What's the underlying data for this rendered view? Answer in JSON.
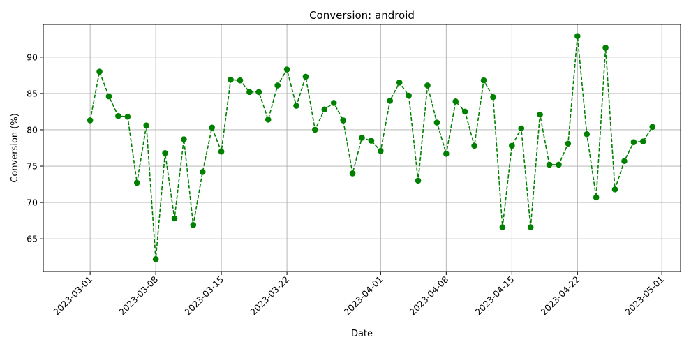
{
  "chart_data": {
    "type": "line",
    "title": "Conversion: android",
    "xlabel": "Date",
    "ylabel": "Conversion (%)",
    "grid": true,
    "line_style": "dashed",
    "marker": "circle",
    "color": "#008000",
    "xlim": [
      "2023-02-24",
      "2023-05-03"
    ],
    "ylim": [
      60.5,
      94.5
    ],
    "x_ticks": [
      "2023-03-01",
      "2023-03-08",
      "2023-03-15",
      "2023-03-22",
      "2023-04-01",
      "2023-04-08",
      "2023-04-15",
      "2023-04-22",
      "2023-05-01"
    ],
    "y_ticks": [
      65,
      70,
      75,
      80,
      85,
      90
    ],
    "series": [
      {
        "x": [
          "2023-03-01",
          "2023-03-02",
          "2023-03-03",
          "2023-03-04",
          "2023-03-05",
          "2023-03-06",
          "2023-03-07",
          "2023-03-08",
          "2023-03-09",
          "2023-03-10",
          "2023-03-11",
          "2023-03-12",
          "2023-03-13",
          "2023-03-14",
          "2023-03-15",
          "2023-03-16",
          "2023-03-17",
          "2023-03-18",
          "2023-03-19",
          "2023-03-20",
          "2023-03-21",
          "2023-03-22",
          "2023-03-23",
          "2023-03-24",
          "2023-03-25",
          "2023-03-26",
          "2023-03-27",
          "2023-03-28",
          "2023-03-29",
          "2023-03-30",
          "2023-03-31",
          "2023-04-01",
          "2023-04-02",
          "2023-04-03",
          "2023-04-04",
          "2023-04-05",
          "2023-04-06",
          "2023-04-07",
          "2023-04-08",
          "2023-04-09",
          "2023-04-10",
          "2023-04-11",
          "2023-04-12",
          "2023-04-13",
          "2023-04-14",
          "2023-04-15",
          "2023-04-16",
          "2023-04-17",
          "2023-04-18",
          "2023-04-19",
          "2023-04-20",
          "2023-04-21",
          "2023-04-22",
          "2023-04-23",
          "2023-04-24",
          "2023-04-25",
          "2023-04-26",
          "2023-04-27",
          "2023-04-28",
          "2023-04-29",
          "2023-04-30"
        ],
        "values": [
          81.3,
          88.0,
          84.6,
          81.9,
          81.8,
          72.7,
          80.6,
          62.2,
          76.8,
          67.8,
          78.7,
          66.9,
          74.2,
          80.3,
          77.0,
          86.9,
          86.8,
          85.2,
          85.2,
          81.4,
          86.1,
          88.3,
          83.3,
          87.3,
          80.0,
          82.8,
          83.7,
          81.3,
          74.0,
          78.9,
          78.5,
          77.1,
          84.0,
          86.5,
          84.7,
          73.0,
          86.1,
          81.0,
          76.7,
          83.9,
          82.5,
          77.8,
          86.8,
          84.5,
          66.6,
          77.8,
          80.2,
          66.6,
          82.1,
          75.2,
          75.2,
          78.1,
          92.9,
          79.4,
          70.7,
          91.3,
          71.8,
          75.7,
          78.3,
          78.4,
          80.4
        ]
      }
    ]
  }
}
